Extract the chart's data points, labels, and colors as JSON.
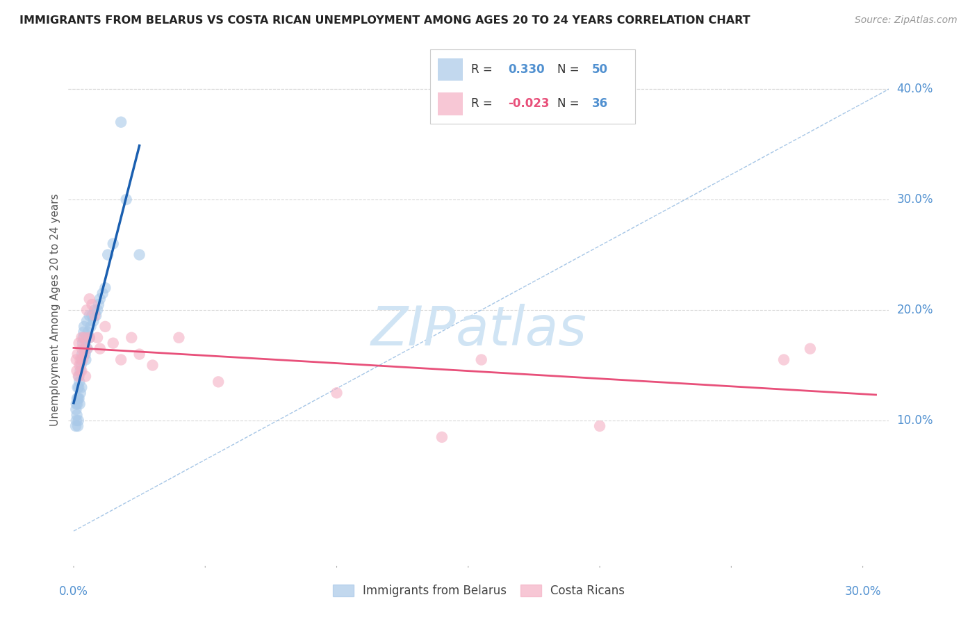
{
  "title": "IMMIGRANTS FROM BELARUS VS COSTA RICAN UNEMPLOYMENT AMONG AGES 20 TO 24 YEARS CORRELATION CHART",
  "source": "Source: ZipAtlas.com",
  "ylabel": "Unemployment Among Ages 20 to 24 years",
  "watermark": "ZIPatlas",
  "legend_series": [
    {
      "label": "Immigrants from Belarus",
      "R": "0.330",
      "N": "50",
      "color": "#a8c8e8"
    },
    {
      "label": "Costa Ricans",
      "R": "-0.023",
      "N": "36",
      "color": "#f4b8c8"
    }
  ],
  "ylim": [
    -0.03,
    0.43
  ],
  "xlim": [
    -0.002,
    0.31
  ],
  "yticks": [
    0.1,
    0.2,
    0.3,
    0.4
  ],
  "ytick_labels": [
    "10.0%",
    "20.0%",
    "30.0%",
    "40.0%"
  ],
  "xticks": [
    0.0,
    0.05,
    0.1,
    0.15,
    0.2,
    0.25,
    0.3
  ],
  "blue_color": "#a8c8e8",
  "pink_color": "#f4b0c4",
  "trendline_blue": "#1a5fb0",
  "trendline_pink": "#e8507a",
  "trendline_diag_color": "#90b8e0",
  "title_color": "#222222",
  "axis_label_color": "#5090d0",
  "watermark_color": "#d0e4f4",
  "background_color": "#ffffff",
  "grid_color": "#d8d8d8",
  "belarus_x": [
    0.0008,
    0.0009,
    0.001,
    0.001,
    0.0012,
    0.0013,
    0.0014,
    0.0015,
    0.0016,
    0.0017,
    0.0018,
    0.0019,
    0.002,
    0.002,
    0.0022,
    0.0023,
    0.0025,
    0.0026,
    0.0028,
    0.003,
    0.003,
    0.0032,
    0.0034,
    0.0036,
    0.0038,
    0.004,
    0.0042,
    0.0044,
    0.0046,
    0.005,
    0.005,
    0.0052,
    0.0055,
    0.006,
    0.006,
    0.0065,
    0.007,
    0.0075,
    0.008,
    0.0085,
    0.009,
    0.0095,
    0.01,
    0.011,
    0.012,
    0.013,
    0.015,
    0.018,
    0.02,
    0.025
  ],
  "belarus_y": [
    0.095,
    0.11,
    0.1,
    0.115,
    0.105,
    0.12,
    0.115,
    0.13,
    0.095,
    0.12,
    0.1,
    0.13,
    0.14,
    0.12,
    0.135,
    0.115,
    0.145,
    0.125,
    0.15,
    0.155,
    0.13,
    0.16,
    0.17,
    0.175,
    0.18,
    0.185,
    0.165,
    0.16,
    0.155,
    0.175,
    0.19,
    0.165,
    0.18,
    0.175,
    0.195,
    0.185,
    0.195,
    0.19,
    0.2,
    0.195,
    0.2,
    0.205,
    0.21,
    0.215,
    0.22,
    0.25,
    0.26,
    0.37,
    0.3,
    0.25
  ],
  "costa_rica_x": [
    0.001,
    0.0012,
    0.0015,
    0.0018,
    0.002,
    0.0022,
    0.0025,
    0.003,
    0.003,
    0.0032,
    0.0035,
    0.004,
    0.0042,
    0.0045,
    0.005,
    0.005,
    0.006,
    0.006,
    0.007,
    0.008,
    0.009,
    0.01,
    0.012,
    0.015,
    0.018,
    0.022,
    0.025,
    0.03,
    0.04,
    0.055,
    0.1,
    0.14,
    0.155,
    0.2,
    0.27,
    0.28
  ],
  "costa_rica_y": [
    0.155,
    0.145,
    0.16,
    0.14,
    0.17,
    0.15,
    0.155,
    0.175,
    0.145,
    0.165,
    0.155,
    0.16,
    0.175,
    0.14,
    0.2,
    0.165,
    0.21,
    0.175,
    0.205,
    0.195,
    0.175,
    0.165,
    0.185,
    0.17,
    0.155,
    0.175,
    0.16,
    0.15,
    0.175,
    0.135,
    0.125,
    0.085,
    0.155,
    0.095,
    0.155,
    0.165
  ]
}
